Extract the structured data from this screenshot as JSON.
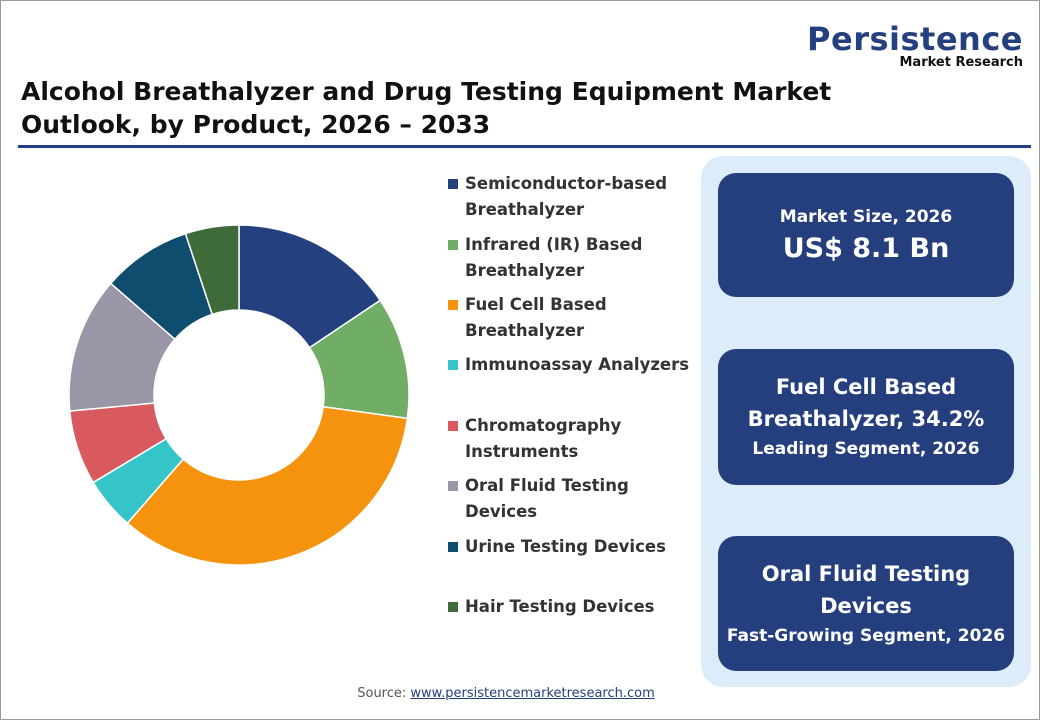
{
  "header": {
    "logo": "Persistence",
    "logo_sub": "Market Research"
  },
  "chart_data": {
    "type": "donut",
    "title": "Alcohol Breathalyzer and Drug Testing Equipment Market Outlook, by Product, 2026 – 2033",
    "categories": [
      "Semiconductor-based Breathalyzer",
      "Infrared (IR) Based Breathalyzer",
      "Fuel Cell Based Breathalyzer",
      "Immunoassay Analyzers",
      "Chromatography Instruments",
      "Oral Fluid Testing Devices",
      "Urine Testing Devices",
      "Hair Testing Devices"
    ],
    "values": [
      15.6,
      11.6,
      34.2,
      5.0,
      7.1,
      12.9,
      8.5,
      5.1
    ],
    "colors": [
      "#25407e",
      "#6fae64",
      "#f5920e",
      "#35c5c9",
      "#d95a5e",
      "#9b95a8",
      "#0e4d6e",
      "#3f6b3a"
    ]
  },
  "cards": [
    {
      "label": "Market Size, 2026",
      "value": "US$ 8.1 Bn"
    },
    {
      "value": "Fuel Cell Based Breathalyzer, 34.2%",
      "label": "Leading Segment, 2026"
    },
    {
      "value": "Oral Fluid Testing Devices",
      "label": "Fast-Growing Segment, 2026"
    }
  ],
  "source": {
    "label": "Source:",
    "link": "www.persistencemarketresearch.com"
  }
}
